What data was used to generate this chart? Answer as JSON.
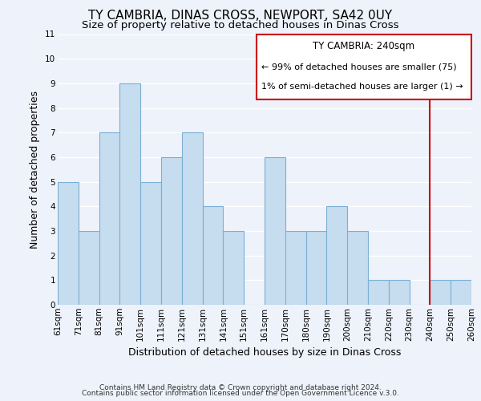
{
  "title": "TY CAMBRIA, DINAS CROSS, NEWPORT, SA42 0UY",
  "subtitle": "Size of property relative to detached houses in Dinas Cross",
  "xlabel": "Distribution of detached houses by size in Dinas Cross",
  "ylabel": "Number of detached properties",
  "footer1": "Contains HM Land Registry data © Crown copyright and database right 2024.",
  "footer2": "Contains public sector information licensed under the Open Government Licence v.3.0.",
  "bar_labels": [
    "61sqm",
    "71sqm",
    "81sqm",
    "91sqm",
    "101sqm",
    "111sqm",
    "121sqm",
    "131sqm",
    "141sqm",
    "151sqm",
    "161sqm",
    "170sqm",
    "180sqm",
    "190sqm",
    "200sqm",
    "210sqm",
    "220sqm",
    "230sqm",
    "240sqm",
    "250sqm",
    "260sqm"
  ],
  "bar_values": [
    5,
    3,
    7,
    9,
    5,
    6,
    7,
    4,
    3,
    0,
    6,
    3,
    3,
    4,
    3,
    1,
    1,
    0,
    1,
    1
  ],
  "bar_color": "#c6dcef",
  "bar_edge_color": "#7bafd4",
  "annotation_title": "TY CAMBRIA: 240sqm",
  "annotation_line1": "← 99% of detached houses are smaller (75)",
  "annotation_line2": "1% of semi-detached houses are larger (1) →",
  "annotation_box_color": "#ffffff",
  "annotation_box_edge": "#cc0000",
  "vline_color": "#cc0000",
  "ylim": [
    0,
    11
  ],
  "yticks": [
    0,
    1,
    2,
    3,
    4,
    5,
    6,
    7,
    8,
    9,
    10,
    11
  ],
  "bg_color": "#eef2fb",
  "grid_color": "#ffffff",
  "title_fontsize": 11,
  "subtitle_fontsize": 9.5,
  "axis_label_fontsize": 9,
  "tick_fontsize": 7.5,
  "annotation_fontsize": 8.5,
  "footer_fontsize": 6.5
}
